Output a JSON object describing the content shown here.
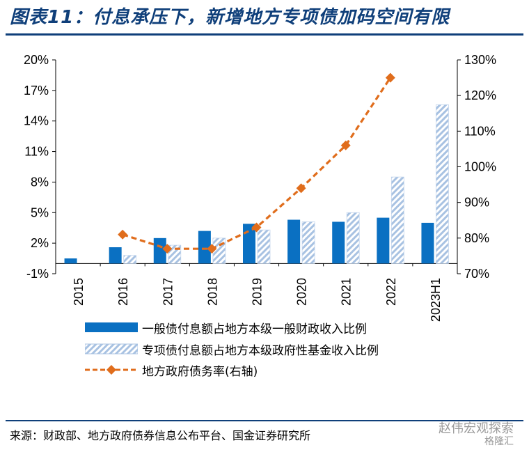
{
  "title": "图表11：付息承压下，新增地方专项债加码空间有限",
  "source": "来源：财政部、地方政府债券信息公布平台、国金证券研究所",
  "watermark": {
    "line1": "赵伟宏观探索",
    "line2": "格隆汇"
  },
  "colors": {
    "title": "#0f3f7a",
    "series_general": "#0a70c2",
    "series_special_stripe": "#a8c2e2",
    "series_rate": "#e06d1c"
  },
  "chart_data": {
    "type": "bar",
    "categories": [
      "2015",
      "2016",
      "2017",
      "2018",
      "2019",
      "2020",
      "2021",
      "2022",
      "2023H1"
    ],
    "y_left": {
      "ticks": [
        "-1%",
        "2%",
        "5%",
        "8%",
        "11%",
        "14%",
        "17%",
        "20%"
      ],
      "min": -1,
      "max": 20,
      "unit": "%"
    },
    "y_right": {
      "ticks": [
        "70%",
        "80%",
        "90%",
        "100%",
        "110%",
        "120%",
        "130%"
      ],
      "min": 70,
      "max": 130,
      "unit": "%"
    },
    "series": [
      {
        "name": "一般债付息额占地方本级一般财政收入比例",
        "type": "bar",
        "axis": "left",
        "style": "solid",
        "values": [
          0.5,
          1.6,
          2.5,
          3.2,
          3.9,
          4.3,
          4.1,
          4.5,
          4.0
        ]
      },
      {
        "name": "专项债付息额占地方本级政府性基金收入比例",
        "type": "bar",
        "axis": "left",
        "style": "hatched",
        "values": [
          null,
          0.8,
          1.8,
          2.5,
          3.3,
          4.1,
          5.0,
          8.5,
          15.6
        ]
      },
      {
        "name": "地方政府债务率(右轴)",
        "type": "line",
        "axis": "right",
        "style": "dashed-diamond",
        "values": [
          null,
          81,
          77,
          77,
          83,
          94,
          106,
          125,
          null
        ]
      }
    ],
    "grid": false,
    "legend_position": "bottom"
  }
}
